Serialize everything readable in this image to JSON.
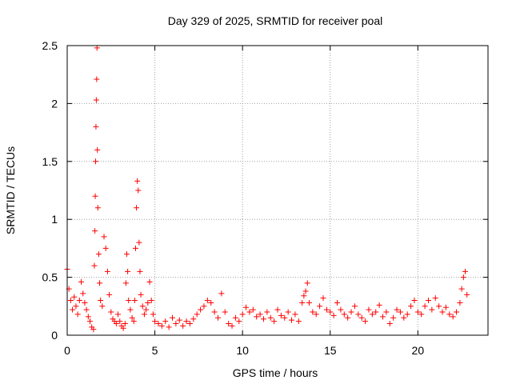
{
  "chart_data": {
    "type": "scatter",
    "title": "Day 329 of 2025, SRMTID for receiver poal",
    "xlabel": "GPS time / hours",
    "ylabel": "SRMTID / TECUs",
    "xlim": [
      0,
      24
    ],
    "ylim": [
      0,
      2.5
    ],
    "xticks": [
      0,
      5,
      10,
      15,
      20
    ],
    "yticks": [
      0,
      0.5,
      1,
      1.5,
      2,
      2.5
    ],
    "xtick_labels": [
      "0",
      "5",
      "10",
      "15",
      "20"
    ],
    "ytick_labels": [
      "0",
      "0.5",
      "1",
      "1.5",
      "2",
      "2.5"
    ],
    "grid": true,
    "marker": "+",
    "color": "#ff0000",
    "series": [
      {
        "name": "SRMTID",
        "x": [
          0.0,
          0.1,
          0.2,
          0.3,
          0.4,
          0.5,
          0.6,
          0.7,
          0.8,
          0.9,
          1.0,
          1.1,
          1.2,
          1.3,
          1.4,
          1.5,
          1.55,
          1.58,
          1.6,
          1.62,
          1.64,
          1.66,
          1.68,
          1.7,
          1.72,
          1.75,
          1.8,
          1.85,
          1.9,
          2.0,
          2.1,
          2.2,
          2.3,
          2.4,
          2.5,
          2.6,
          2.7,
          2.8,
          2.9,
          3.0,
          3.1,
          3.2,
          3.3,
          3.35,
          3.4,
          3.45,
          3.5,
          3.6,
          3.7,
          3.8,
          3.85,
          3.9,
          3.95,
          4.0,
          4.05,
          4.1,
          4.15,
          4.2,
          4.3,
          4.4,
          4.5,
          4.6,
          4.7,
          4.8,
          4.9,
          5.0,
          5.2,
          5.4,
          5.6,
          5.8,
          6.0,
          6.2,
          6.4,
          6.6,
          6.8,
          7.0,
          7.2,
          7.4,
          7.6,
          7.8,
          8.0,
          8.2,
          8.4,
          8.6,
          8.8,
          9.0,
          9.2,
          9.4,
          9.6,
          9.8,
          10.0,
          10.2,
          10.4,
          10.6,
          10.8,
          11.0,
          11.2,
          11.4,
          11.6,
          11.8,
          12.0,
          12.2,
          12.4,
          12.6,
          12.8,
          13.0,
          13.2,
          13.4,
          13.5,
          13.6,
          13.7,
          13.8,
          14.0,
          14.2,
          14.4,
          14.6,
          14.8,
          15.0,
          15.2,
          15.4,
          15.6,
          15.8,
          16.0,
          16.2,
          16.4,
          16.6,
          16.8,
          17.0,
          17.2,
          17.4,
          17.6,
          17.8,
          18.0,
          18.2,
          18.4,
          18.6,
          18.8,
          19.0,
          19.2,
          19.4,
          19.6,
          19.8,
          20.0,
          20.2,
          20.4,
          20.6,
          20.8,
          21.0,
          21.2,
          21.4,
          21.6,
          21.8,
          22.0,
          22.2,
          22.4,
          22.5,
          22.6,
          22.7,
          22.8
        ],
        "y": [
          0.57,
          0.4,
          0.3,
          0.22,
          0.33,
          0.25,
          0.18,
          0.3,
          0.46,
          0.36,
          0.28,
          0.22,
          0.16,
          0.12,
          0.07,
          0.05,
          0.6,
          0.9,
          1.2,
          1.5,
          1.8,
          2.03,
          2.21,
          2.48,
          1.6,
          1.1,
          0.7,
          0.45,
          0.3,
          0.25,
          0.85,
          0.75,
          0.55,
          0.35,
          0.2,
          0.14,
          0.12,
          0.1,
          0.18,
          0.12,
          0.08,
          0.06,
          0.1,
          0.45,
          0.7,
          0.55,
          0.3,
          0.22,
          0.15,
          0.12,
          0.3,
          0.75,
          1.1,
          1.33,
          1.25,
          0.8,
          0.55,
          0.35,
          0.25,
          0.18,
          0.22,
          0.28,
          0.46,
          0.3,
          0.18,
          0.12,
          0.1,
          0.08,
          0.12,
          0.07,
          0.15,
          0.1,
          0.13,
          0.08,
          0.12,
          0.1,
          0.14,
          0.18,
          0.22,
          0.25,
          0.3,
          0.28,
          0.2,
          0.15,
          0.36,
          0.2,
          0.1,
          0.08,
          0.15,
          0.12,
          0.18,
          0.24,
          0.2,
          0.22,
          0.16,
          0.18,
          0.14,
          0.2,
          0.15,
          0.12,
          0.22,
          0.17,
          0.15,
          0.2,
          0.13,
          0.18,
          0.12,
          0.28,
          0.34,
          0.38,
          0.45,
          0.28,
          0.2,
          0.18,
          0.25,
          0.32,
          0.22,
          0.2,
          0.17,
          0.28,
          0.22,
          0.18,
          0.15,
          0.2,
          0.25,
          0.18,
          0.15,
          0.12,
          0.22,
          0.18,
          0.2,
          0.26,
          0.16,
          0.2,
          0.1,
          0.15,
          0.22,
          0.2,
          0.15,
          0.18,
          0.25,
          0.3,
          0.2,
          0.18,
          0.25,
          0.3,
          0.22,
          0.32,
          0.25,
          0.2,
          0.24,
          0.18,
          0.16,
          0.2,
          0.28,
          0.4,
          0.5,
          0.55,
          0.35
        ]
      }
    ]
  }
}
